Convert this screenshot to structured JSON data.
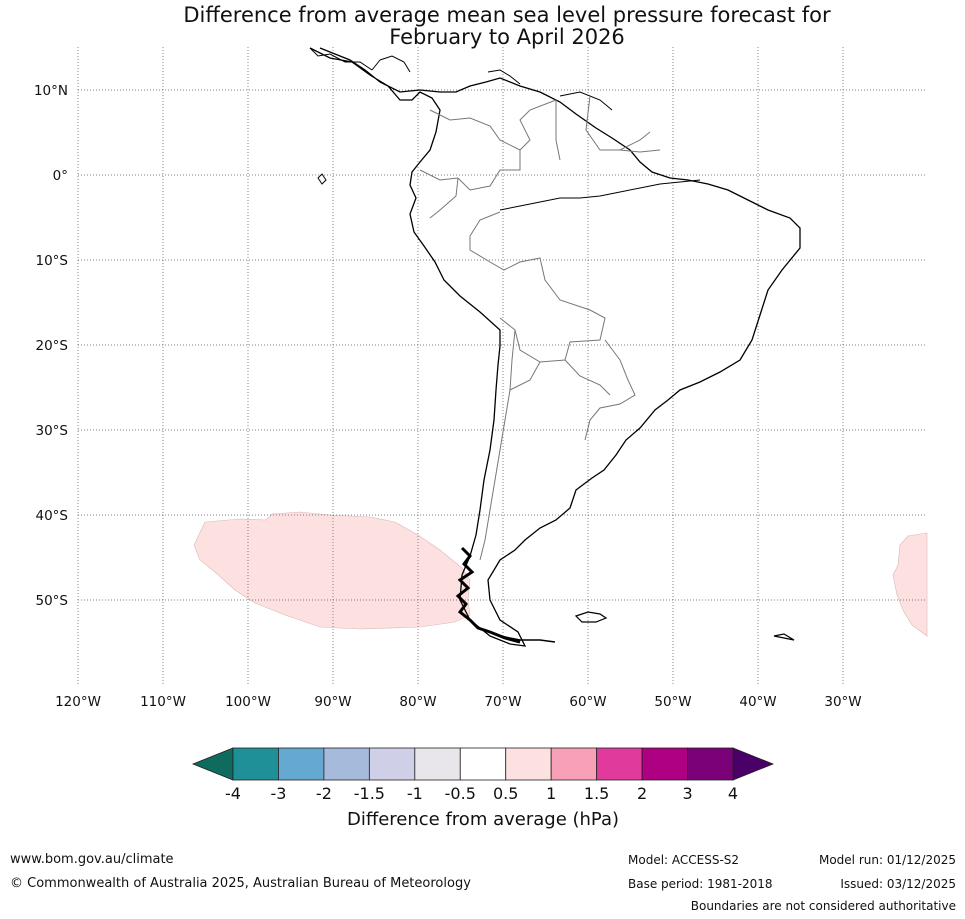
{
  "title": {
    "line1": "Difference from average mean sea level pressure forecast for",
    "line2": "February to April 2026"
  },
  "map": {
    "lat_labels": [
      "10°N",
      "0°",
      "10°S",
      "20°S",
      "30°S",
      "40°S",
      "50°S"
    ],
    "lon_labels": [
      "120°W",
      "110°W",
      "100°W",
      "90°W",
      "80°W",
      "70°W",
      "60°W",
      "50°W",
      "40°W",
      "30°W"
    ],
    "anomaly_regions": [
      {
        "name": "South-east Pacific west of Patagonia",
        "category": "0.5 to 1"
      },
      {
        "name": "South Atlantic east of 30°W",
        "category": "0.5 to 1"
      }
    ]
  },
  "colorbar": {
    "ticks": [
      "-4",
      "-3",
      "-2",
      "-1.5",
      "-1",
      "-0.5",
      "0.5",
      "1",
      "1.5",
      "2",
      "3",
      "4"
    ],
    "colors": [
      "#0f6b5e",
      "#1f8f98",
      "#65a9d1",
      "#a6badc",
      "#cfd0e7",
      "#e8e6eb",
      "#ffffff",
      "#fde0e0",
      "#f9a0b9",
      "#df3a9c",
      "#ad0083",
      "#7a0177",
      "#4a0066"
    ],
    "label": "Difference from average (hPa)"
  },
  "footer": {
    "website": "www.bom.gov.au/climate",
    "copyright": "© Commonwealth of Australia 2025, Australian Bureau of Meteorology",
    "model": "Model: ACCESS-S2",
    "base_period": "Base period: 1981-2018",
    "model_run": "Model run: 01/12/2025",
    "issued": "Issued: 03/12/2025",
    "disclaimer": "Boundaries are not considered authoritative"
  }
}
